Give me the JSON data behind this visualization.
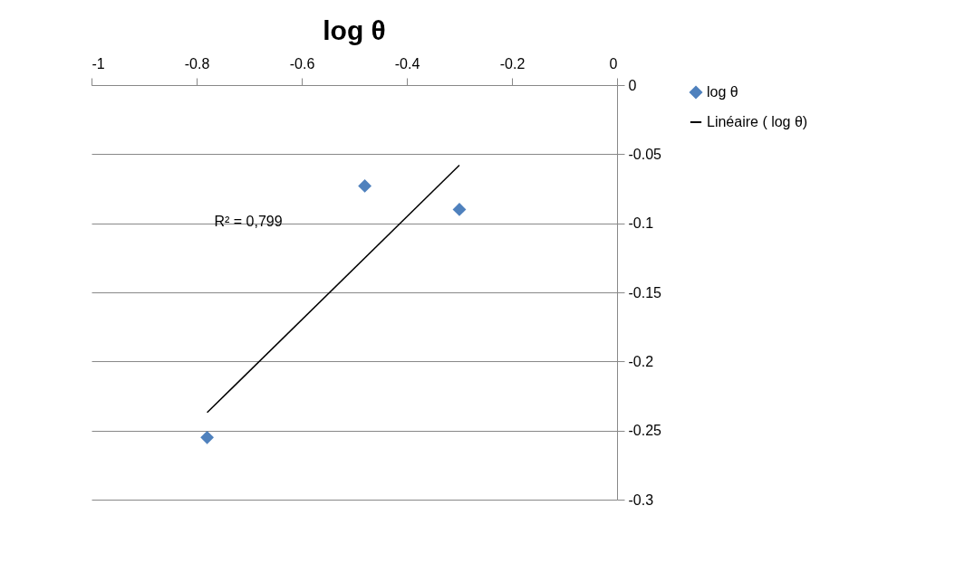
{
  "chart_data": {
    "type": "scatter",
    "title": "log θ",
    "series": [
      {
        "name": "log θ",
        "color": "#4f81bd",
        "marker": "diamond",
        "x": [
          -0.78,
          -0.48,
          -0.3
        ],
        "values": [
          -0.255,
          -0.073,
          -0.09
        ]
      },
      {
        "name": "Linéaire ( log θ)",
        "type": "line",
        "color": "#000000",
        "x": [
          -0.78,
          -0.3
        ],
        "values": [
          -0.237,
          -0.058
        ]
      }
    ],
    "xlim": [
      -1,
      0
    ],
    "xticks": [
      -1,
      -0.8,
      -0.6,
      -0.4,
      -0.2,
      0
    ],
    "ylim": [
      -0.3,
      0
    ],
    "yticks": [
      0,
      -0.05,
      -0.1,
      -0.15,
      -0.2,
      -0.25,
      -0.3
    ],
    "grid": "y",
    "legend": "right",
    "annotations": [
      "R² = 0,799"
    ]
  }
}
